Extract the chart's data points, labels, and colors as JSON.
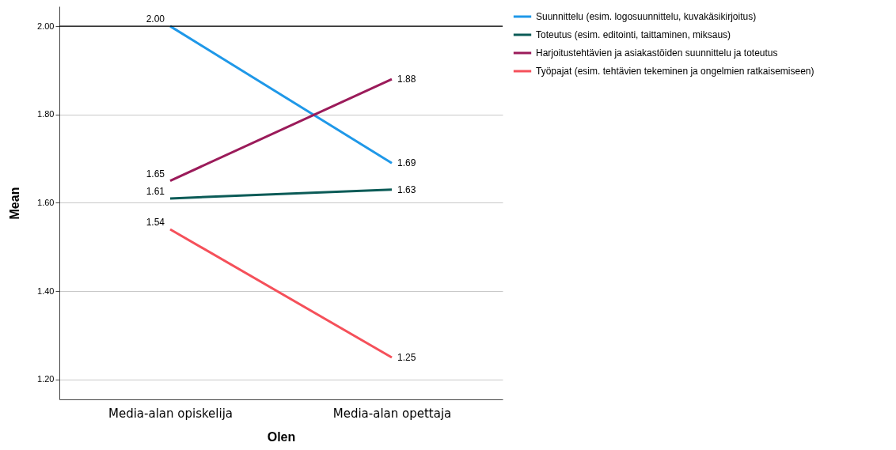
{
  "chart_data": {
    "type": "line",
    "xlabel": "Olen",
    "ylabel": "Mean",
    "categories": [
      "Media-alan opiskelija",
      "Media-alan opettaja"
    ],
    "series": [
      {
        "name": "Suunnittelu (esim. logosuunnittelu, kuvakäsikirjoitus)",
        "color": "#1f98e8",
        "values": [
          2.0,
          1.69
        ],
        "value_labels": [
          "2.00",
          "1.69"
        ]
      },
      {
        "name": "Toteutus (esim. editointi, taittaminen, miksaus)",
        "color": "#0b5b57",
        "values": [
          1.61,
          1.63
        ],
        "value_labels": [
          "1.61",
          "1.63"
        ]
      },
      {
        "name": "Harjoitustehtävien ja asiakastöiden suunnittelu ja toteutus",
        "color": "#9b1b5a",
        "values": [
          1.65,
          1.88
        ],
        "value_labels": [
          "1.65",
          "1.88"
        ]
      },
      {
        "name": "Työpajat (esim. tehtävien tekeminen ja ongelmien ratkaisemiseen)",
        "color": "#f5505a",
        "values": [
          1.54,
          1.25
        ],
        "value_labels": [
          "1.54",
          "1.25"
        ]
      }
    ],
    "ylim": [
      1.155,
      2.045
    ],
    "yticks": [
      {
        "value": 1.2,
        "label": "1.20"
      },
      {
        "value": 1.4,
        "label": "1.40"
      },
      {
        "value": 1.6,
        "label": "1.60"
      },
      {
        "value": 1.8,
        "label": "1.80"
      },
      {
        "value": 2.0,
        "label": "2.00"
      }
    ],
    "ref_lines": [
      {
        "axis": "y",
        "value": 2.0,
        "color": "#000000"
      }
    ],
    "grid": "y",
    "legend": "top right",
    "marker": "none",
    "line_style": "solid"
  }
}
